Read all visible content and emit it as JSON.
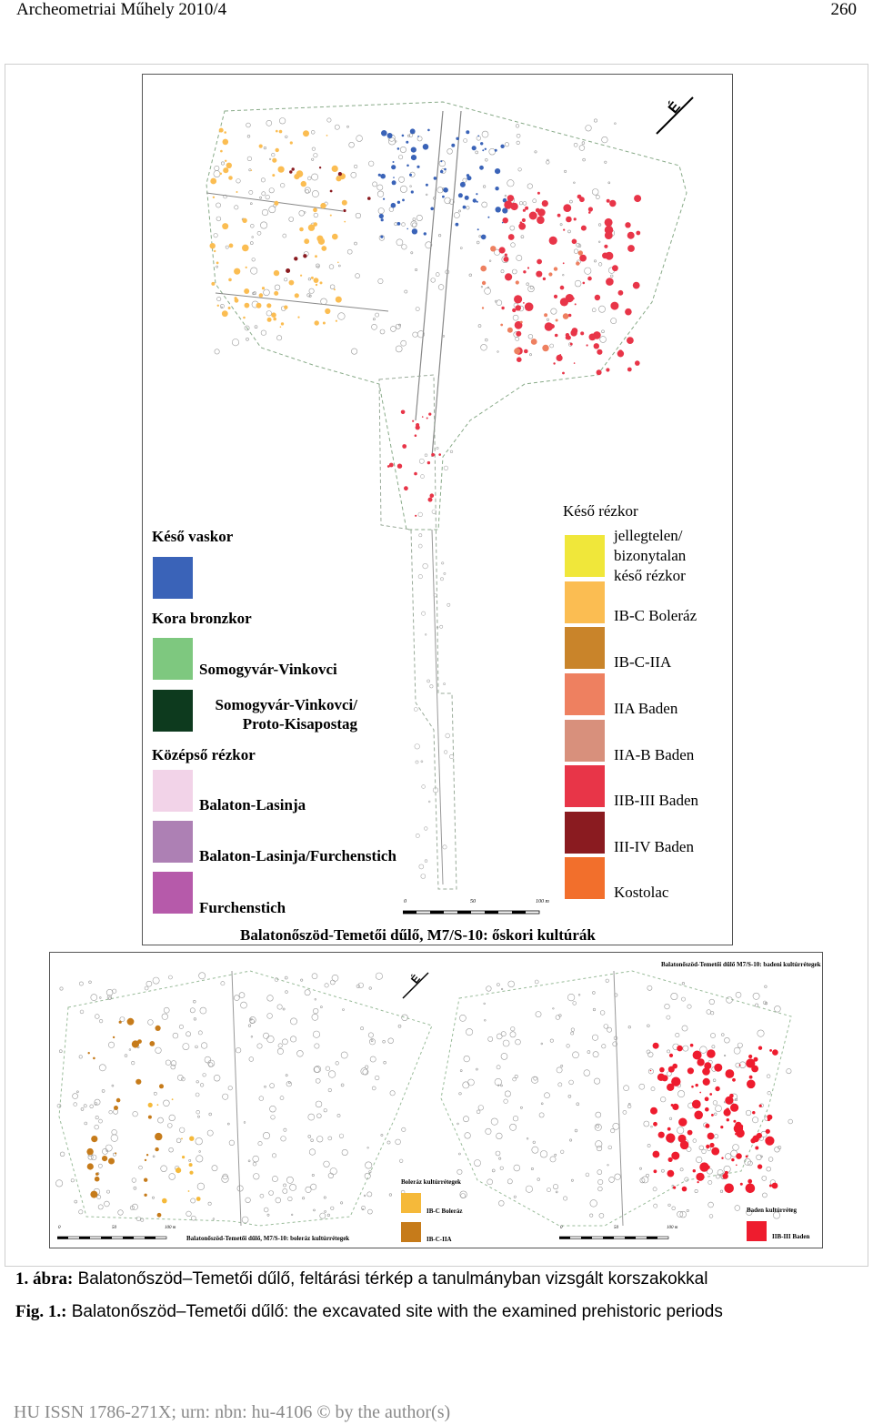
{
  "header": {
    "journal": "Archeometriai Műhely 2010/4",
    "page": "260"
  },
  "main_map": {
    "title": "Balatonőszöd-Temetői dűlő, M7/S-10: őskori kultúrák",
    "north_label": "É",
    "scale": {
      "zero": "0",
      "mid": "50",
      "end": "100 m"
    },
    "legend_left": [
      {
        "period": "Késő vaskor",
        "items": [
          {
            "label": "",
            "color": "#3a63b8"
          }
        ]
      },
      {
        "period": "Kora bronzkor",
        "items": [
          {
            "label": "Somogyvár-Vinkovci",
            "color": "#7ec87f"
          },
          {
            "label": "Somogyvár-Vinkovci/\nProto-Kisapostag",
            "color": "#0d3a1e"
          }
        ]
      },
      {
        "period": "Középső rézkor",
        "items": [
          {
            "label": "Balaton-Lasinja",
            "color": "#f2d3e8"
          },
          {
            "label": "Balaton-Lasinja/Furchenstich",
            "color": "#ad80b4"
          },
          {
            "label": "Furchenstich",
            "color": "#b65aaa"
          }
        ]
      }
    ],
    "legend_right": {
      "period": "Késő rézkor",
      "items": [
        {
          "label": "jellegtelen/\nbizonytalan\nkéső rézkor",
          "color": "#f0e73a"
        },
        {
          "label": "IB-C Boleráz",
          "color": "#fbbd52"
        },
        {
          "label": "IB-C-IIA",
          "color": "#c9842a"
        },
        {
          "label": "IIA Baden",
          "color": "#ee8060"
        },
        {
          "label": "IIA-B Baden",
          "color": "#d8907c"
        },
        {
          "label": "IIB-III Baden",
          "color": "#e83548"
        },
        {
          "label": "III-IV Baden",
          "color": "#8a1b20"
        },
        {
          "label": "Kostolac",
          "color": "#f26f2c"
        }
      ]
    }
  },
  "sub_maps": {
    "left": {
      "north_label": "É",
      "legend_title": "Boleráz kultúrrétegek",
      "items": [
        {
          "label": "IB-C Boleráz",
          "color": "#f5b93a"
        },
        {
          "label": "IB-C-IIA",
          "color": "#c67b1a"
        }
      ],
      "caption": "Balatonőszöd-Temetői dűlő, M7/S-10: boleráz kultúrrétegek",
      "scale": {
        "zero": "0",
        "mid": "50",
        "end": "100 m"
      }
    },
    "right": {
      "title": "Balatonőszöd-Temetői dűlő M7/S-10: badeni kultúrrétegek",
      "legend_title": "Baden kultúrréteg",
      "items": [
        {
          "label": "IIB-III Baden",
          "color": "#ee1c2e"
        }
      ],
      "scale": {
        "zero": "0",
        "mid": "50",
        "end": "100 m"
      }
    }
  },
  "caption": {
    "hu_prefix": "1. ábra:",
    "hu_text": " Balatonőszöd–Temetői dűlő, feltárási térkép a tanulmányban vizsgált korszakokkal",
    "en_prefix": "Fig. 1.:",
    "en_text": " Balatonőszöd–Temetői dűlő: the excavated site with the examined prehistoric periods"
  },
  "footer": "HU ISSN 1786-271X; urn: nbn: hu-4106 © by the author(s)"
}
